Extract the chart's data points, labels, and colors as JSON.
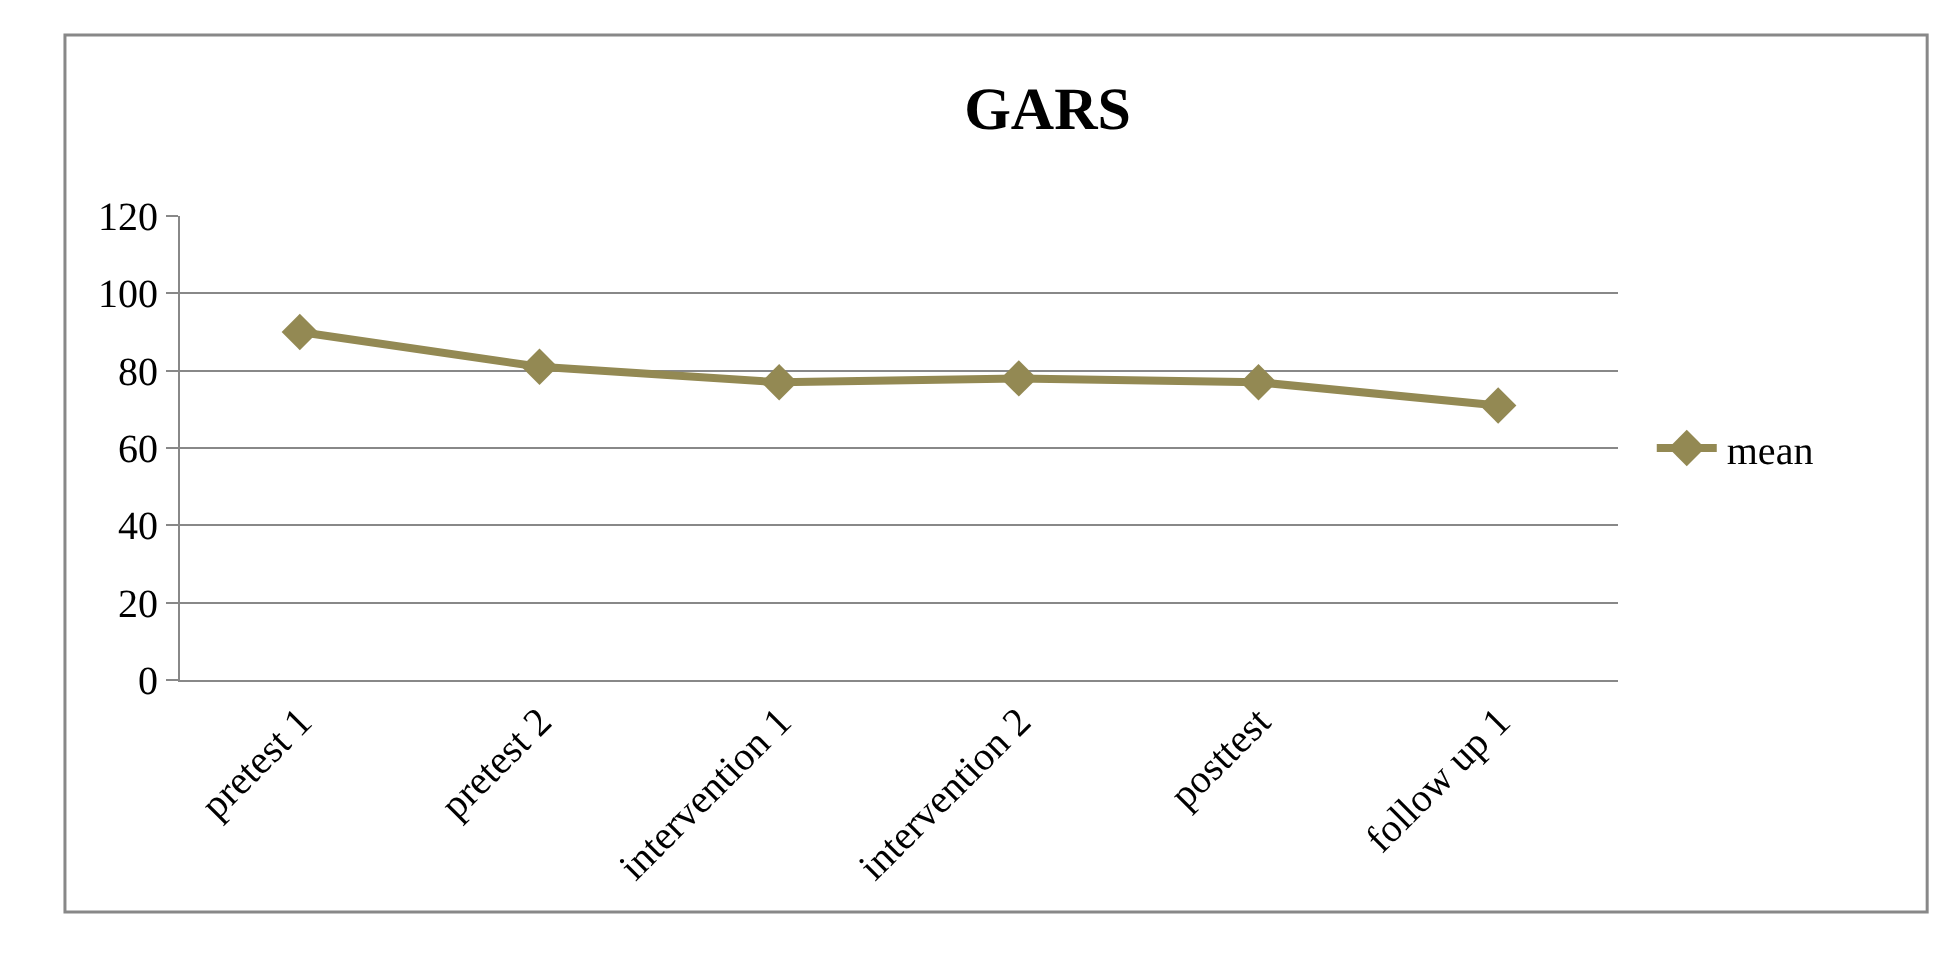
{
  "chart_data": {
    "type": "line",
    "title": "GARS",
    "categories": [
      "pretest 1",
      "pretest 2",
      "intervention 1",
      "intervention 2",
      "posttest",
      "follow up 1"
    ],
    "series": [
      {
        "name": "mean",
        "color": "#938953",
        "values": [
          90,
          81,
          77,
          78,
          77,
          71
        ]
      }
    ],
    "ylim": [
      0,
      120
    ],
    "yticks": [
      0,
      20,
      40,
      60,
      80,
      100,
      120
    ],
    "grid": "y",
    "legend": "right",
    "marker": "diamond",
    "line_style": "solid"
  }
}
